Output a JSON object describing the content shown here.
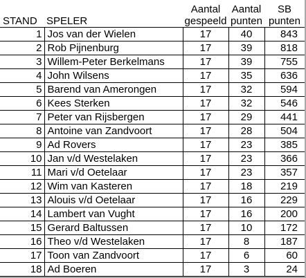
{
  "headers": {
    "stand": "STAND",
    "speler": "SPELER",
    "gespeeld": [
      "Aantal",
      "gespeeld"
    ],
    "punten": [
      "Aantal",
      "punten"
    ],
    "sb": [
      "SB",
      "punten"
    ]
  },
  "rows": [
    {
      "stand": "1",
      "speler": "Jos van der Wielen",
      "gespeeld": "17",
      "punten": "40",
      "sb": "843"
    },
    {
      "stand": "2",
      "speler": "Rob Pijnenburg",
      "gespeeld": "17",
      "punten": "39",
      "sb": "818"
    },
    {
      "stand": "3",
      "speler": "Willem-Peter Berkelmans",
      "gespeeld": "17",
      "punten": "39",
      "sb": "755"
    },
    {
      "stand": "4",
      "speler": "John Wilsens",
      "gespeeld": "17",
      "punten": "35",
      "sb": "636"
    },
    {
      "stand": "5",
      "speler": "Barend van Amerongen",
      "gespeeld": "17",
      "punten": "32",
      "sb": "594"
    },
    {
      "stand": "6",
      "speler": "Kees Sterken",
      "gespeeld": "17",
      "punten": "32",
      "sb": "546"
    },
    {
      "stand": "7",
      "speler": "Peter van Rijsbergen",
      "gespeeld": "17",
      "punten": "29",
      "sb": "441"
    },
    {
      "stand": "8",
      "speler": "Antoine van Zandvoort",
      "gespeeld": "17",
      "punten": "28",
      "sb": "504"
    },
    {
      "stand": "9",
      "speler": "Ad Rovers",
      "gespeeld": "17",
      "punten": "23",
      "sb": "385"
    },
    {
      "stand": "10",
      "speler": "Jan v/d Westelaken",
      "gespeeld": "17",
      "punten": "23",
      "sb": "366"
    },
    {
      "stand": "11",
      "speler": "Mari v/d Oetelaar",
      "gespeeld": "17",
      "punten": "23",
      "sb": "357"
    },
    {
      "stand": "12",
      "speler": "Wim van Kasteren",
      "gespeeld": "17",
      "punten": "18",
      "sb": "219"
    },
    {
      "stand": "13",
      "speler": "Alouis v/d Oetelaar",
      "gespeeld": "17",
      "punten": "16",
      "sb": "229"
    },
    {
      "stand": "14",
      "speler": "Lambert van Vught",
      "gespeeld": "17",
      "punten": "16",
      "sb": "200"
    },
    {
      "stand": "15",
      "speler": "Gerard Baltussen",
      "gespeeld": "17",
      "punten": "10",
      "sb": "172"
    },
    {
      "stand": "16",
      "speler": "Theo v/d Westelaken",
      "gespeeld": "17",
      "punten": "8",
      "sb": "187"
    },
    {
      "stand": "17",
      "speler": "Toon van Zandvoort",
      "gespeeld": "17",
      "punten": "6",
      "sb": "60"
    },
    {
      "stand": "18",
      "speler": "Ad Boeren",
      "gespeeld": "17",
      "punten": "3",
      "sb": "24"
    }
  ]
}
